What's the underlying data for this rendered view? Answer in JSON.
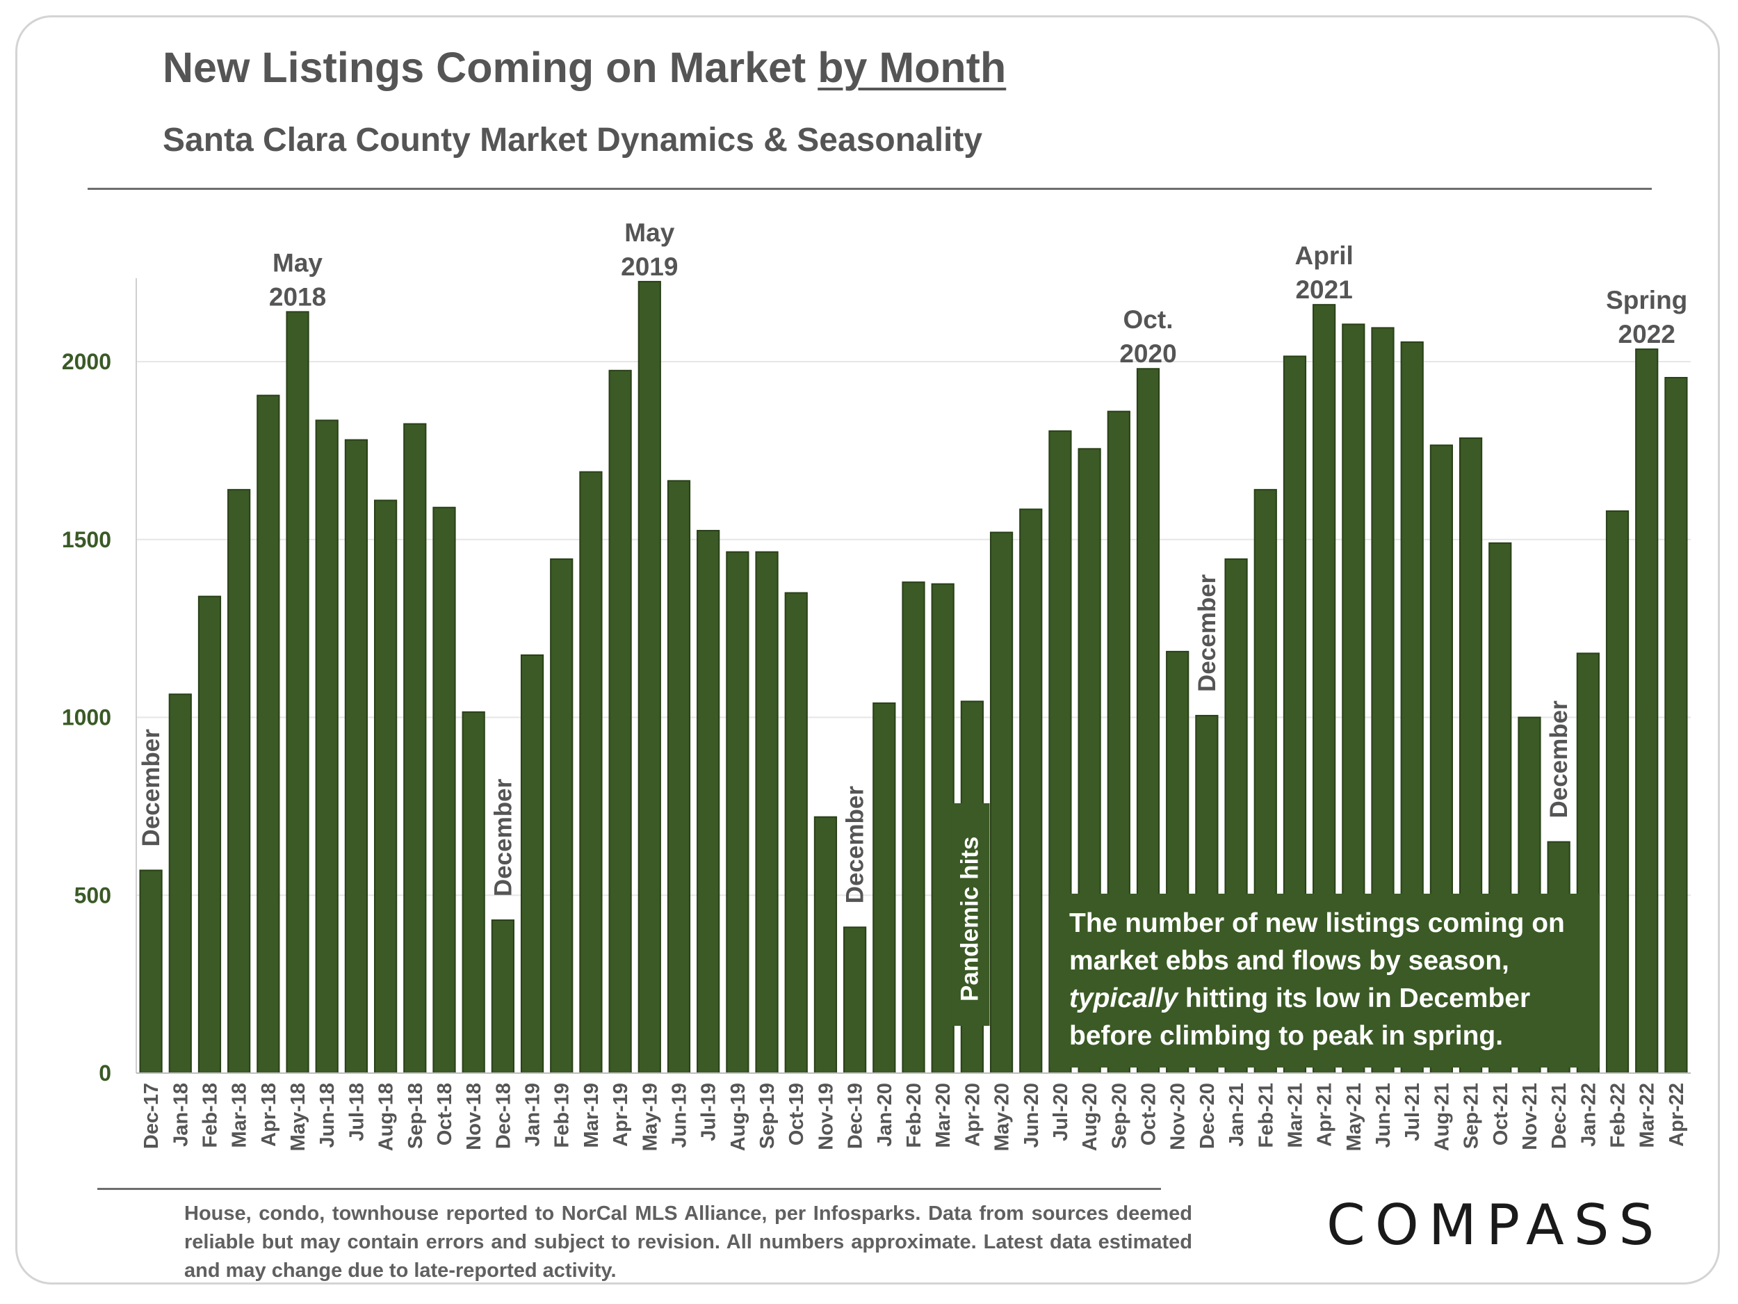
{
  "header": {
    "title_main": "New Listings Coming on Market ",
    "title_underlined": "by Month",
    "subtitle": "Santa Clara County Market Dynamics & Seasonality"
  },
  "colors": {
    "bar": "#3b5a25",
    "bar_edge": "#2a4019",
    "grid": "#e6e6e6",
    "axis_tick": "#3a5a26",
    "text": "#555555"
  },
  "chart_data": {
    "type": "bar",
    "title": "New Listings Coming on Market by Month",
    "xlabel": "",
    "ylabel": "",
    "ylim": [
      0,
      2200
    ],
    "yticks": [
      0,
      500,
      1000,
      1500,
      2000
    ],
    "grid": true,
    "categories": [
      "Dec-17",
      "Jan-18",
      "Feb-18",
      "Mar-18",
      "Apr-18",
      "May-18",
      "Jun-18",
      "Jul-18",
      "Aug-18",
      "Sep-18",
      "Oct-18",
      "Nov-18",
      "Dec-18",
      "Jan-19",
      "Feb-19",
      "Mar-19",
      "Apr-19",
      "May-19",
      "Jun-19",
      "Jul-19",
      "Aug-19",
      "Sep-19",
      "Oct-19",
      "Nov-19",
      "Dec-19",
      "Jan-20",
      "Feb-20",
      "Mar-20",
      "Apr-20",
      "May-20",
      "Jun-20",
      "Jul-20",
      "Aug-20",
      "Sep-20",
      "Oct-20",
      "Nov-20",
      "Dec-20",
      "Jan-21",
      "Feb-21",
      "Mar-21",
      "Apr-21",
      "May-21",
      "Jun-21",
      "Jul-21",
      "Aug-21",
      "Sep-21",
      "Oct-21",
      "Nov-21",
      "Dec-21",
      "Jan-22",
      "Feb-22",
      "Mar-22",
      "Apr-22"
    ],
    "series": [
      {
        "name": "New Listings",
        "values": [
          570,
          1065,
          1340,
          1640,
          1905,
          2140,
          1835,
          1780,
          1610,
          1825,
          1590,
          1015,
          430,
          1175,
          1445,
          1690,
          1975,
          2225,
          1665,
          1525,
          1465,
          1465,
          1350,
          720,
          410,
          1040,
          1380,
          1375,
          1045,
          1520,
          1585,
          1805,
          1755,
          1860,
          1980,
          1185,
          1005,
          1445,
          1640,
          2015,
          2160,
          2105,
          2095,
          2055,
          1765,
          1785,
          1490,
          1000,
          650,
          1180,
          1580,
          2035,
          1955
        ]
      }
    ],
    "annotations": {
      "peaks": [
        {
          "index": 5,
          "lines": [
            "May",
            "2018"
          ]
        },
        {
          "index": 17,
          "lines": [
            "May",
            "2019"
          ]
        },
        {
          "index": 34,
          "lines": [
            "Oct.",
            "2020"
          ]
        },
        {
          "index": 40,
          "lines": [
            "April",
            "2021"
          ]
        },
        {
          "index": 51,
          "lines": [
            "Spring",
            "2022"
          ]
        }
      ],
      "decembers": [
        {
          "index": 0,
          "text": "December"
        },
        {
          "index": 12,
          "text": "December"
        },
        {
          "index": 24,
          "text": "December"
        },
        {
          "index": 36,
          "text": "December"
        },
        {
          "index": 48,
          "text": "December"
        }
      ],
      "pandemic": {
        "index": 28,
        "text": "Pandemic hits"
      }
    }
  },
  "callout": {
    "line1": "The number of new listings coming on",
    "line2": "market ebbs and flows by season,",
    "line3_italic": "typically",
    "line3_rest": " hitting its low in December",
    "line4": "before climbing to peak in  spring."
  },
  "footnote": "House, condo, townhouse reported to NorCal MLS Alliance, per Infosparks. Data from sources deemed reliable but may contain errors and subject to revision. All numbers approximate. Latest data estimated and may change due to late-reported activity.",
  "logo": {
    "text": "COMPASS"
  }
}
